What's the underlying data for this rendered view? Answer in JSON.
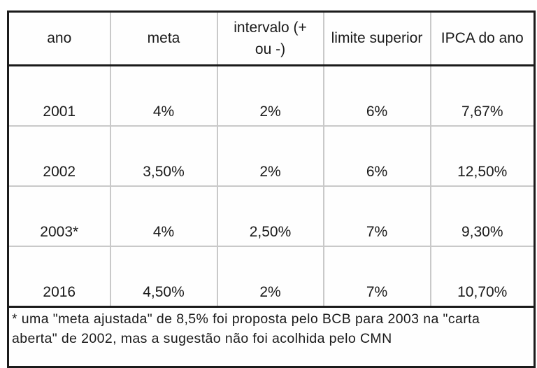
{
  "chart_data": {
    "type": "table",
    "columns": [
      "ano",
      "meta",
      "intervalo (+ ou -)",
      "limite superior",
      "IPCA do ano"
    ],
    "rows": [
      [
        "2001",
        "4%",
        "2%",
        "6%",
        "7,67%"
      ],
      [
        "2002",
        "3,50%",
        "2%",
        "6%",
        "12,50%"
      ],
      [
        "2003*",
        "4%",
        "2,50%",
        "7%",
        "9,30%"
      ],
      [
        "2016",
        "4,50%",
        "2%",
        "7%",
        "10,70%"
      ]
    ],
    "footnote": "* uma \"meta ajustada\" de 8,5% foi proposta pelo BCB para 2003 na \"carta aberta\" de 2002, mas a sugestão não foi acolhida pelo CMN"
  },
  "colors": {
    "border_strong": "#1b1b1b",
    "grid_light": "#c9c9c9",
    "text": "#1a1a1a",
    "background": "#ffffff"
  }
}
